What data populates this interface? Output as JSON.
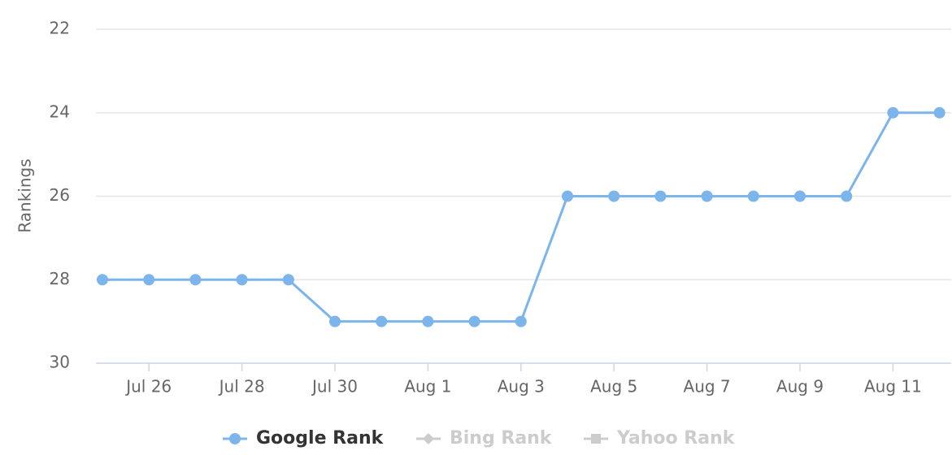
{
  "chart_data": {
    "type": "line",
    "y_axis_title": "Rankings",
    "categories": [
      null,
      "Jul 26",
      null,
      "Jul 28",
      null,
      "Jul 30",
      null,
      "Aug 1",
      null,
      "Aug 3",
      null,
      "Aug 5",
      null,
      "Aug 7",
      null,
      "Aug 9",
      null,
      "Aug 11",
      null
    ],
    "series": [
      {
        "name": "Google Rank",
        "color": "#7cb5ec",
        "marker": "circle",
        "visible": true,
        "values": [
          28,
          28,
          28,
          28,
          28,
          29,
          29,
          29,
          29,
          29,
          26,
          26,
          26,
          26,
          26,
          26,
          26,
          24,
          24
        ]
      },
      {
        "name": "Bing Rank",
        "color": "#cccccc",
        "marker": "diamond",
        "visible": false
      },
      {
        "name": "Yahoo Rank",
        "color": "#cccccc",
        "marker": "square",
        "visible": false
      }
    ],
    "ylim": [
      22,
      30
    ],
    "y_reversed": true,
    "yticks": [
      22,
      24,
      26,
      28,
      30
    ],
    "grid": true
  }
}
